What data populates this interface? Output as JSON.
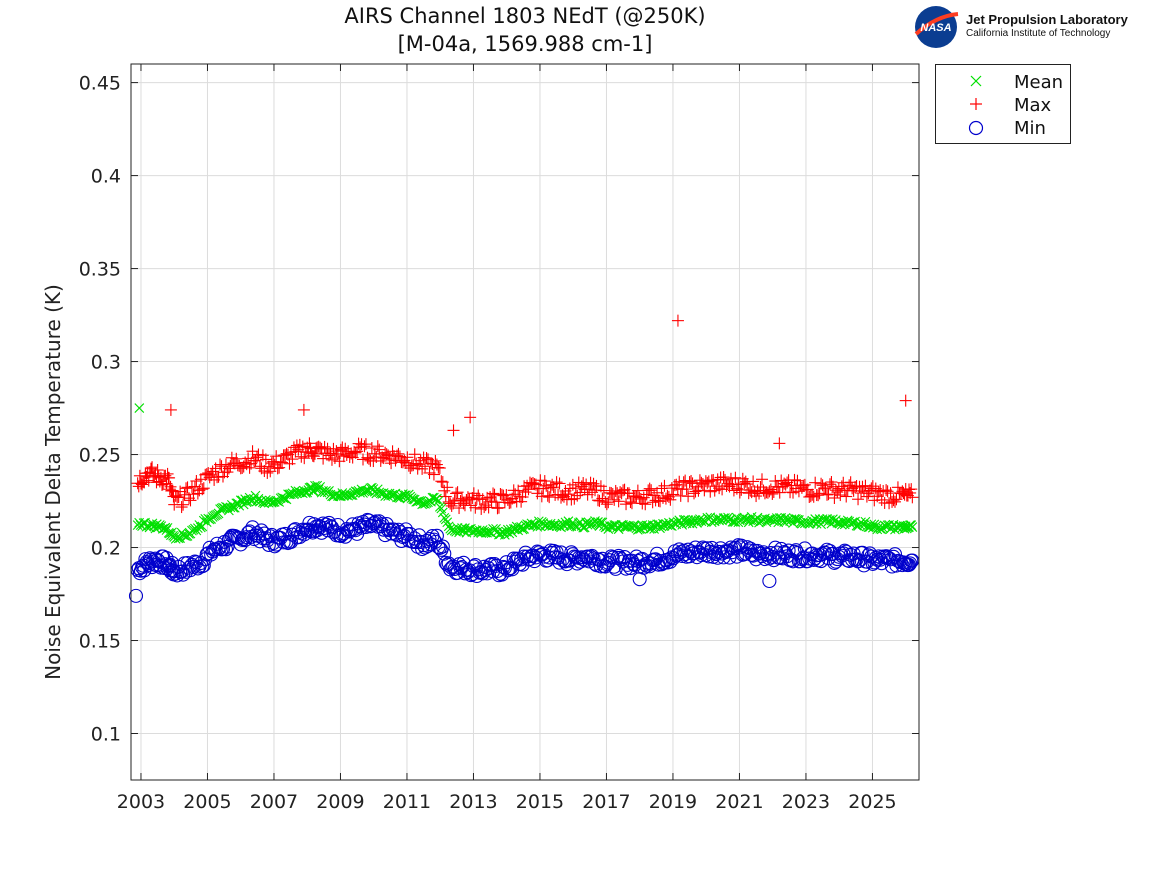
{
  "header": {
    "title_line1": "AIRS Channel 1803 NEdT (@250K)",
    "title_line2": "[M-04a, 1569.988 cm-1]"
  },
  "logo": {
    "badge_text": "NASA",
    "org_name": "Jet Propulsion Laboratory",
    "org_sub": "California Institute of Technology"
  },
  "colors": {
    "mean": "#00e000",
    "max": "#ff0000",
    "min": "#0000cc"
  },
  "chart_data": {
    "type": "scatter",
    "title": "AIRS Channel 1803 NEdT (@250K)\n[M-04a, 1569.988 cm-1]",
    "xlabel": "",
    "ylabel": "Noise Equivalent Delta Temperature (K)",
    "xlim": [
      2002.7,
      2026.4
    ],
    "ylim": [
      0.075,
      0.46
    ],
    "xticks": [
      2003,
      2005,
      2007,
      2009,
      2011,
      2013,
      2015,
      2017,
      2019,
      2021,
      2023,
      2025
    ],
    "yticks": [
      0.1,
      0.15,
      0.2,
      0.25,
      0.3,
      0.35,
      0.4,
      0.45
    ],
    "ytick_labels": [
      "0.1",
      "0.15",
      "0.2",
      "0.25",
      "0.3",
      "0.35",
      "0.4",
      "0.45"
    ],
    "grid": true,
    "legend_position": "outside-top-right",
    "series": [
      {
        "name": "Mean",
        "marker": "x",
        "x": [
          2002.9,
          2003.3,
          2003.7,
          2004.0,
          2004.4,
          2004.8,
          2005.2,
          2005.6,
          2006.0,
          2006.4,
          2006.8,
          2007.2,
          2007.6,
          2008.0,
          2008.3,
          2008.7,
          2009.1,
          2009.5,
          2009.9,
          2010.3,
          2010.7,
          2011.1,
          2011.5,
          2011.9,
          2012.3,
          2012.7,
          2013.1,
          2013.5,
          2013.9,
          2014.3,
          2014.7,
          2015.1,
          2015.5,
          2015.9,
          2016.3,
          2016.7,
          2017.1,
          2017.5,
          2017.9,
          2018.3,
          2018.7,
          2019.1,
          2019.5,
          2019.9,
          2020.3,
          2020.7,
          2021.1,
          2021.5,
          2021.9,
          2022.3,
          2022.7,
          2023.1,
          2023.5,
          2023.9,
          2024.3,
          2024.7,
          2025.1,
          2025.5,
          2025.9,
          2026.2
        ],
        "y": [
          0.213,
          0.212,
          0.211,
          0.206,
          0.207,
          0.212,
          0.218,
          0.221,
          0.224,
          0.227,
          0.224,
          0.226,
          0.229,
          0.231,
          0.232,
          0.229,
          0.228,
          0.23,
          0.231,
          0.229,
          0.228,
          0.227,
          0.224,
          0.226,
          0.21,
          0.209,
          0.209,
          0.209,
          0.208,
          0.21,
          0.212,
          0.213,
          0.212,
          0.213,
          0.212,
          0.213,
          0.211,
          0.211,
          0.211,
          0.211,
          0.212,
          0.213,
          0.214,
          0.215,
          0.215,
          0.215,
          0.215,
          0.215,
          0.214,
          0.215,
          0.214,
          0.214,
          0.214,
          0.214,
          0.213,
          0.213,
          0.211,
          0.211,
          0.211,
          0.211
        ]
      },
      {
        "name": "Max",
        "marker": "+",
        "x": [
          2002.9,
          2003.2,
          2003.5,
          2003.8,
          2004.0,
          2004.4,
          2004.8,
          2005.2,
          2005.6,
          2006.0,
          2006.4,
          2006.8,
          2007.2,
          2007.6,
          2008.0,
          2008.3,
          2008.7,
          2009.1,
          2009.5,
          2009.9,
          2010.3,
          2010.7,
          2011.1,
          2011.5,
          2011.9,
          2012.3,
          2012.7,
          2013.1,
          2013.5,
          2013.9,
          2014.3,
          2014.7,
          2015.1,
          2015.5,
          2015.9,
          2016.3,
          2016.7,
          2017.1,
          2017.5,
          2017.9,
          2018.3,
          2018.7,
          2019.1,
          2019.5,
          2019.9,
          2020.3,
          2020.7,
          2021.1,
          2021.5,
          2021.9,
          2022.3,
          2022.7,
          2023.1,
          2023.5,
          2023.9,
          2024.3,
          2024.7,
          2025.1,
          2025.5,
          2025.9,
          2026.2
        ],
        "y": [
          0.236,
          0.24,
          0.238,
          0.237,
          0.224,
          0.228,
          0.234,
          0.24,
          0.244,
          0.246,
          0.248,
          0.244,
          0.246,
          0.25,
          0.253,
          0.252,
          0.25,
          0.25,
          0.252,
          0.251,
          0.25,
          0.249,
          0.247,
          0.244,
          0.243,
          0.225,
          0.226,
          0.225,
          0.225,
          0.225,
          0.228,
          0.231,
          0.232,
          0.231,
          0.23,
          0.231,
          0.23,
          0.227,
          0.227,
          0.227,
          0.228,
          0.229,
          0.231,
          0.232,
          0.233,
          0.234,
          0.234,
          0.234,
          0.232,
          0.233,
          0.232,
          0.232,
          0.231,
          0.232,
          0.231,
          0.231,
          0.23,
          0.229,
          0.228,
          0.228,
          0.227
        ]
      },
      {
        "name": "Min",
        "marker": "o",
        "x": [
          2002.9,
          2003.2,
          2003.5,
          2003.8,
          2004.0,
          2004.4,
          2004.8,
          2005.2,
          2005.6,
          2006.0,
          2006.4,
          2006.8,
          2007.2,
          2007.6,
          2008.0,
          2008.3,
          2008.7,
          2009.1,
          2009.5,
          2009.9,
          2010.3,
          2010.7,
          2011.1,
          2011.5,
          2011.9,
          2012.3,
          2012.7,
          2013.1,
          2013.5,
          2013.9,
          2014.3,
          2014.7,
          2015.1,
          2015.5,
          2015.9,
          2016.3,
          2016.7,
          2017.1,
          2017.5,
          2017.9,
          2018.3,
          2018.7,
          2019.1,
          2019.5,
          2019.9,
          2020.3,
          2020.7,
          2021.1,
          2021.5,
          2021.9,
          2022.3,
          2022.7,
          2023.1,
          2023.5,
          2023.9,
          2024.3,
          2024.7,
          2025.1,
          2025.5,
          2025.9,
          2026.2
        ],
        "y": [
          0.188,
          0.192,
          0.193,
          0.191,
          0.187,
          0.189,
          0.192,
          0.199,
          0.202,
          0.205,
          0.208,
          0.204,
          0.204,
          0.207,
          0.211,
          0.212,
          0.21,
          0.209,
          0.21,
          0.212,
          0.21,
          0.207,
          0.206,
          0.202,
          0.204,
          0.19,
          0.189,
          0.188,
          0.188,
          0.188,
          0.192,
          0.195,
          0.196,
          0.195,
          0.194,
          0.195,
          0.194,
          0.192,
          0.192,
          0.192,
          0.193,
          0.194,
          0.196,
          0.197,
          0.198,
          0.198,
          0.198,
          0.198,
          0.196,
          0.197,
          0.196,
          0.196,
          0.196,
          0.196,
          0.195,
          0.195,
          0.194,
          0.193,
          0.193,
          0.193,
          0.193
        ]
      }
    ],
    "outliers": [
      {
        "series": "Mean",
        "x": 2002.95,
        "y": 0.275
      },
      {
        "series": "Max",
        "x": 2003.9,
        "y": 0.274
      },
      {
        "series": "Max",
        "x": 2007.9,
        "y": 0.274
      },
      {
        "series": "Max",
        "x": 2012.4,
        "y": 0.263
      },
      {
        "series": "Max",
        "x": 2012.9,
        "y": 0.27
      },
      {
        "series": "Max",
        "x": 2019.15,
        "y": 0.322
      },
      {
        "series": "Max",
        "x": 2022.2,
        "y": 0.256
      },
      {
        "series": "Max",
        "x": 2026.0,
        "y": 0.279
      },
      {
        "series": "Min",
        "x": 2002.85,
        "y": 0.174
      },
      {
        "series": "Min",
        "x": 2021.9,
        "y": 0.182
      },
      {
        "series": "Min",
        "x": 2018.0,
        "y": 0.183
      }
    ]
  },
  "legend": {
    "items": [
      {
        "label": "Mean"
      },
      {
        "label": "Max"
      },
      {
        "label": "Min"
      }
    ]
  }
}
